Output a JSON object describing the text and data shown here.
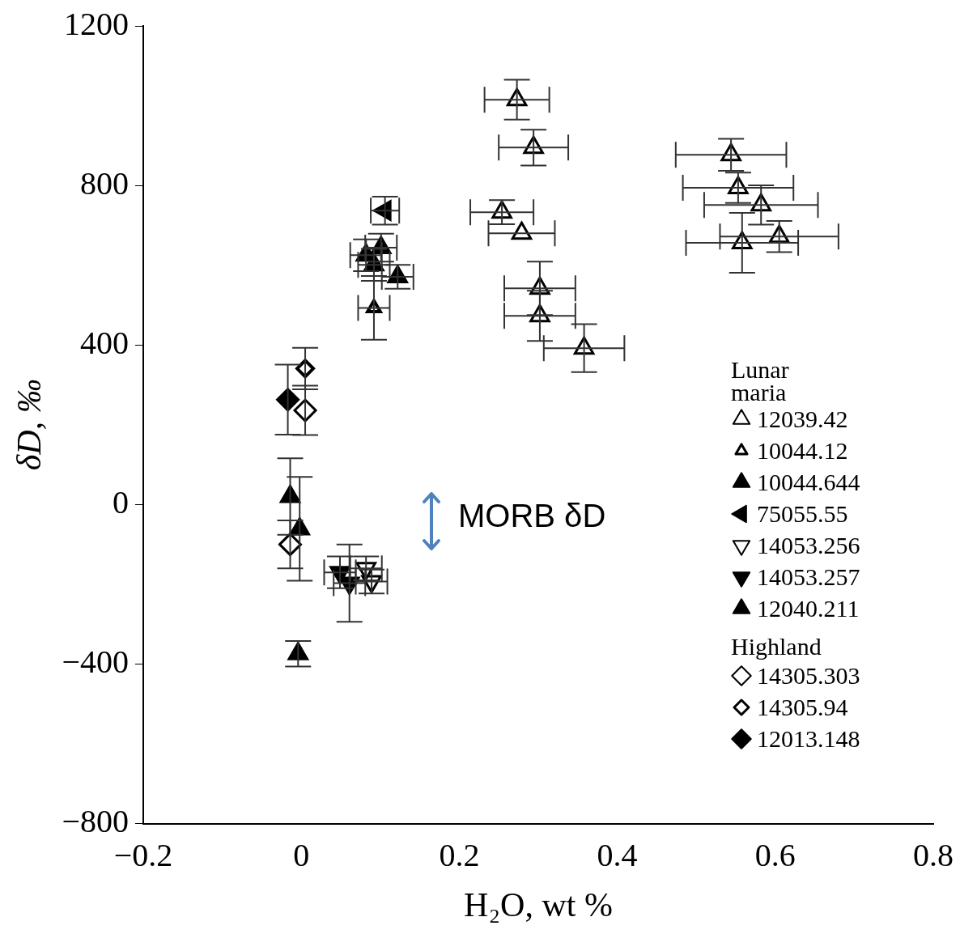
{
  "chart_data": {
    "type": "scatter",
    "xlabel": "H₂O, wt %",
    "ylabel": "δD, ‰",
    "xlim": [
      -0.2,
      0.8
    ],
    "xticks": [
      {
        "value": -0.2,
        "label": "−0.2"
      },
      0,
      0.2,
      0.4,
      0.6,
      0.8
    ],
    "ylim": [
      -800,
      1200
    ],
    "yticks": [
      {
        "value": -800,
        "label": "−800"
      },
      {
        "value": -400,
        "label": "−400"
      },
      0,
      400,
      800,
      1200
    ],
    "grid": false,
    "legend": "bottom right",
    "annotations": [
      "Lunar maria",
      "Highland",
      "MORB δD"
    ],
    "series": [
      {
        "name": "12039.42",
        "marker": "triangle-open",
        "color": "#000000",
        "x": [
          0.273,
          0.294,
          0.254,
          0.279,
          0.302,
          0.302,
          0.358,
          0.544,
          0.553,
          0.582,
          0.605,
          0.558
        ],
        "values": [
          1015,
          895,
          733,
          680,
          542,
          473,
          392,
          877,
          794,
          751,
          672,
          656
        ],
        "errors": [
          50,
          45,
          30,
          null,
          67,
          63,
          60,
          40,
          38,
          49,
          39,
          75
        ],
        "xerrors": [
          0.041,
          0.044,
          0.04,
          0.042,
          0.045,
          0.045,
          0.051,
          0.07,
          0.07,
          0.072,
          0.075,
          0.071
        ]
      },
      {
        "name": "10044.12",
        "marker": "triangle-open-small",
        "color": "#000000",
        "x": [
          0.092
        ],
        "values": [
          493
        ],
        "errors": [
          80
        ],
        "xerrors": [
          0.02
        ]
      },
      {
        "name": "10044.644",
        "marker": "triangle",
        "color": "#000000",
        "x": [
          0.082,
          0.101,
          0.092,
          0.122
        ],
        "values": [
          625,
          644,
          601,
          571
        ],
        "errors": [
          40,
          35,
          40,
          30
        ],
        "xerrors": [
          0.02,
          0.02,
          0.02,
          0.02
        ]
      },
      {
        "name": "75055.55",
        "marker": "triangle-left",
        "color": "#000000",
        "x": [
          0.106
        ],
        "values": [
          737
        ],
        "errors": [
          35
        ],
        "xerrors": [
          0.018
        ]
      },
      {
        "name": "14053.256",
        "marker": "triangle-down-open",
        "color": "#000000",
        "x": [
          0.089,
          0.082
        ],
        "values": [
          -193,
          -160
        ],
        "errors": [
          30,
          30
        ],
        "xerrors": [
          0.02,
          0.02
        ]
      },
      {
        "name": "14053.257",
        "marker": "triangle-down",
        "color": "#000000",
        "x": [
          0.061,
          0.049
        ],
        "values": [
          -197,
          -170
        ],
        "errors": [
          97,
          40
        ],
        "xerrors": [
          0.02,
          0.02
        ]
      },
      {
        "name": "12040.211",
        "marker": "triangle",
        "color": "#000000",
        "x": [
          -0.014,
          -0.002,
          -0.004
        ],
        "values": [
          20,
          -61,
          -374
        ],
        "errors": [
          96,
          130,
          32
        ],
        "xerrors": [
          null,
          null,
          null
        ]
      },
      {
        "name": "14305.303",
        "marker": "diamond-open",
        "color": "#000000",
        "x": [
          0.005,
          -0.014
        ],
        "values": [
          236,
          -100
        ],
        "errors": [
          62,
          60
        ],
        "xerrors": [
          null,
          null
        ]
      },
      {
        "name": "14305.94",
        "marker": "diamond-open-small",
        "color": "#000000",
        "x": [
          0.005
        ],
        "values": [
          341
        ],
        "errors": [
          52
        ],
        "xerrors": [
          null
        ]
      },
      {
        "name": "12013.148",
        "marker": "diamond",
        "color": "#000000",
        "x": [
          -0.017
        ],
        "values": [
          263
        ],
        "errors": [
          88
        ],
        "xerrors": [
          null
        ]
      }
    ]
  }
}
